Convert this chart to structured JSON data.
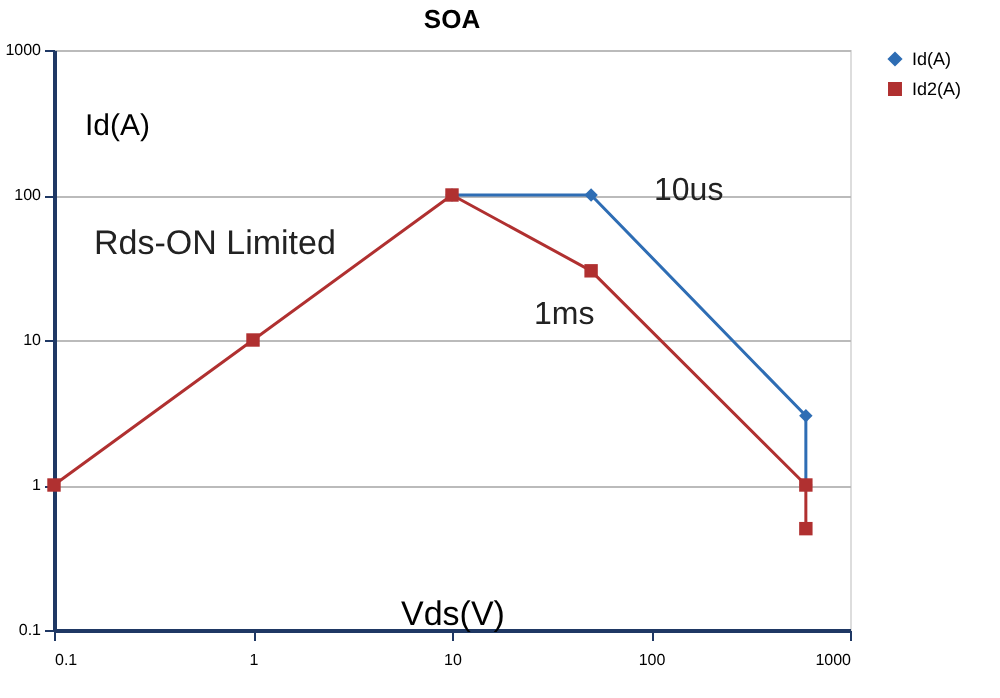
{
  "chart_data": {
    "type": "line",
    "title": "SOA",
    "xlabel": "Vds(V)",
    "ylabel": "Id(A)",
    "log": "xy",
    "grid": "y",
    "legend": "right",
    "xlim": [
      0.1,
      1000
    ],
    "ylim": [
      0.1,
      1000
    ],
    "xticks": [
      0.1,
      1,
      10,
      100,
      1000
    ],
    "yticks": [
      0.1,
      1,
      10,
      100,
      1000
    ],
    "annotations": [
      "Rds-ON Limited",
      "10us",
      "1ms"
    ],
    "series": [
      {
        "name": "Id(A)",
        "color": "#2e6db4",
        "marker": "diamond",
        "x": [
          10,
          50,
          600,
          600
        ],
        "values": [
          100,
          100,
          3,
          1
        ]
      },
      {
        "name": "Id2(A)",
        "color": "#b03030",
        "marker": "square",
        "x": [
          0.1,
          1,
          10,
          50,
          600,
          600
        ],
        "values": [
          1,
          10,
          100,
          30,
          1,
          0.5
        ]
      }
    ]
  }
}
